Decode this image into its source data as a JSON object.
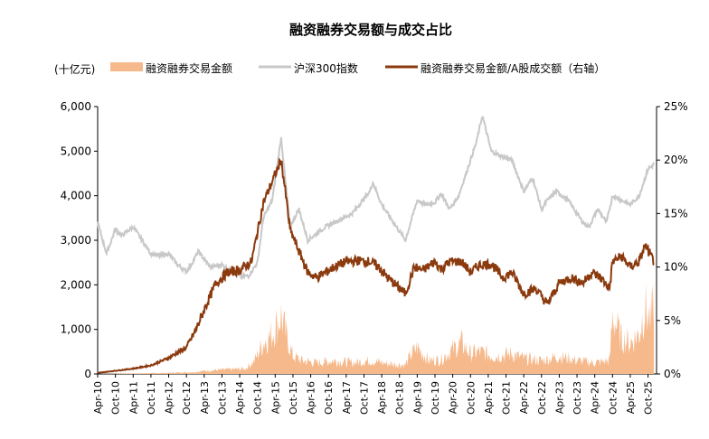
{
  "chart_data": {
    "type": "line",
    "title": "融资融券交易额与成交占比",
    "unit_label": "(十亿元)",
    "legend": [
      {
        "label": "融资融券交易金额",
        "color": "#F6B98C",
        "kind": "area"
      },
      {
        "label": "沪深300指数",
        "color": "#C8C8C8",
        "kind": "line"
      },
      {
        "label": "融资融券交易金额/A股成交额（右轴）",
        "color": "#8B3A0E",
        "kind": "line"
      }
    ],
    "x_ticks": [
      "Apr-10",
      "Oct-10",
      "Apr-11",
      "Oct-11",
      "Apr-12",
      "Oct-12",
      "Apr-13",
      "Oct-13",
      "Apr-14",
      "Oct-14",
      "Apr-15",
      "Oct-15",
      "Apr-16",
      "Oct-16",
      "Apr-17",
      "Oct-17",
      "Apr-18",
      "Oct-18",
      "Apr-19",
      "Oct-19",
      "Apr-20",
      "Oct-20",
      "Apr-21",
      "Oct-21",
      "Apr-22",
      "Oct-22",
      "Apr-23",
      "Oct-23",
      "Apr-24",
      "Oct-24",
      "Apr-25",
      "Oct-25"
    ],
    "y_left": {
      "ylim": [
        0,
        6000
      ],
      "ticks": [
        "0",
        "1,000",
        "2,000",
        "3,000",
        "4,000",
        "5,000",
        "6,000"
      ]
    },
    "y_right": {
      "ylim": [
        0,
        25
      ],
      "ticks": [
        "0%",
        "5%",
        "10%",
        "15%",
        "20%",
        "25%"
      ]
    },
    "series": [
      {
        "name": "沪深300指数",
        "axis": "left",
        "x": [
          "2010-04",
          "2010-07",
          "2010-10",
          "2010-12",
          "2011-04",
          "2011-07",
          "2011-10",
          "2012-01",
          "2012-04",
          "2012-07",
          "2012-10",
          "2012-12",
          "2013-02",
          "2013-06",
          "2013-10",
          "2014-01",
          "2014-04",
          "2014-07",
          "2014-10",
          "2014-12",
          "2015-03",
          "2015-06",
          "2015-09",
          "2015-12",
          "2016-03",
          "2016-06",
          "2016-09",
          "2016-12",
          "2017-03",
          "2017-06",
          "2017-09",
          "2017-12",
          "2018-01",
          "2018-04",
          "2018-07",
          "2018-10",
          "2018-12",
          "2019-04",
          "2019-07",
          "2019-10",
          "2019-12",
          "2020-03",
          "2020-06",
          "2020-09",
          "2020-12",
          "2021-02",
          "2021-05",
          "2021-08",
          "2021-12",
          "2022-04",
          "2022-07",
          "2022-10",
          "2022-12",
          "2023-03",
          "2023-07",
          "2023-10",
          "2023-12",
          "2024-02",
          "2024-05",
          "2024-08",
          "2024-10",
          "2025-01",
          "2025-04",
          "2025-07",
          "2025-10",
          "2025-12"
        ],
        "values": [
          3400,
          2700,
          3250,
          3100,
          3300,
          3000,
          2700,
          2650,
          2700,
          2450,
          2300,
          2500,
          2750,
          2400,
          2450,
          2300,
          2200,
          2200,
          2500,
          3500,
          3900,
          5300,
          3300,
          3700,
          3000,
          3150,
          3300,
          3400,
          3500,
          3600,
          3850,
          4100,
          4300,
          3800,
          3500,
          3200,
          3000,
          3900,
          3800,
          3850,
          4050,
          3700,
          4000,
          4600,
          5200,
          5800,
          5000,
          4900,
          4800,
          4100,
          4400,
          3700,
          3900,
          4100,
          3900,
          3600,
          3400,
          3300,
          3700,
          3400,
          4000,
          3900,
          3800,
          4000,
          4600,
          4700
        ]
      },
      {
        "name": "融资融券交易金额/A股成交额（右轴）",
        "axis": "right",
        "x": [
          "2010-04",
          "2010-10",
          "2011-04",
          "2011-10",
          "2012-04",
          "2012-10",
          "2013-01",
          "2013-04",
          "2013-08",
          "2013-12",
          "2014-04",
          "2014-08",
          "2014-12",
          "2015-03",
          "2015-06",
          "2015-07",
          "2015-09",
          "2015-12",
          "2016-03",
          "2016-06",
          "2016-09",
          "2016-12",
          "2017-04",
          "2017-08",
          "2017-12",
          "2018-03",
          "2018-06",
          "2018-10",
          "2018-12",
          "2019-03",
          "2019-06",
          "2019-10",
          "2019-12",
          "2020-03",
          "2020-07",
          "2020-10",
          "2021-01",
          "2021-05",
          "2021-09",
          "2021-12",
          "2022-04",
          "2022-08",
          "2022-12",
          "2023-04",
          "2023-08",
          "2023-12",
          "2024-03",
          "2024-06",
          "2024-09",
          "2024-10",
          "2025-01",
          "2025-04",
          "2025-07",
          "2025-09",
          "2025-12"
        ],
        "values": [
          0.1,
          0.3,
          0.5,
          0.8,
          1.5,
          2.5,
          4,
          6,
          8.5,
          9.5,
          9.7,
          10.5,
          16,
          18,
          20,
          18,
          13.5,
          11.5,
          9.5,
          9.0,
          9.5,
          10.0,
          10.5,
          10.6,
          10.5,
          10.0,
          9.0,
          8.0,
          7.5,
          10,
          9.7,
          10.5,
          9.8,
          10.5,
          10.5,
          9.5,
          10.2,
          10.3,
          9.0,
          9.5,
          7.5,
          8.0,
          6.5,
          8.5,
          9.0,
          8.5,
          9.5,
          9.0,
          8.0,
          10.5,
          11.0,
          10.0,
          10.5,
          12.0,
          10.5
        ]
      },
      {
        "name": "融资融券交易金额",
        "axis": "left",
        "x": [
          "2010-04",
          "2011-01",
          "2012-01",
          "2012-12",
          "2013-06",
          "2013-12",
          "2014-06",
          "2014-09",
          "2014-12",
          "2015-03",
          "2015-06",
          "2015-08",
          "2015-10",
          "2016-01",
          "2016-06",
          "2016-12",
          "2017-06",
          "2017-12",
          "2018-06",
          "2018-12",
          "2019-02",
          "2019-04",
          "2019-08",
          "2019-12",
          "2020-03",
          "2020-07",
          "2020-10",
          "2021-01",
          "2021-06",
          "2021-12",
          "2022-04",
          "2022-10",
          "2023-04",
          "2023-10",
          "2024-04",
          "2024-09",
          "2024-10",
          "2025-01",
          "2025-04",
          "2025-07",
          "2025-09",
          "2025-11",
          "2025-12"
        ],
        "values": [
          0,
          10,
          20,
          40,
          80,
          100,
          120,
          300,
          700,
          900,
          1300,
          800,
          400,
          300,
          250,
          300,
          250,
          300,
          230,
          200,
          450,
          600,
          300,
          320,
          500,
          700,
          450,
          500,
          400,
          450,
          350,
          300,
          400,
          300,
          250,
          300,
          1300,
          800,
          700,
          900,
          1500,
          1100,
          1800
        ]
      }
    ]
  }
}
